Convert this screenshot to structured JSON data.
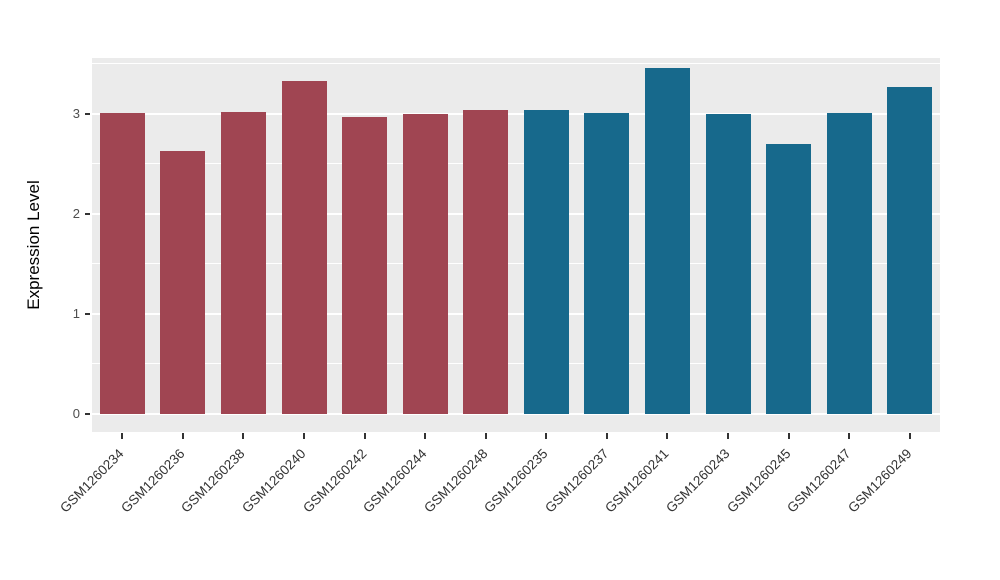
{
  "chart_data": {
    "type": "bar",
    "title": "",
    "xlabel": "",
    "ylabel": "Expression Level",
    "ylim": [
      0,
      3.57
    ],
    "yticks": [
      0,
      1,
      2,
      3
    ],
    "minor_gridlines": [
      0.5,
      1.5,
      2.5,
      3.5
    ],
    "categories": [
      "GSM1260234",
      "GSM1260236",
      "GSM1260238",
      "GSM1260240",
      "GSM1260242",
      "GSM1260244",
      "GSM1260248",
      "GSM1260235",
      "GSM1260237",
      "GSM1260241",
      "GSM1260243",
      "GSM1260245",
      "GSM1260247",
      "GSM1260249"
    ],
    "values": [
      3.01,
      2.63,
      3.02,
      3.33,
      2.97,
      3.0,
      3.04,
      3.04,
      3.01,
      3.46,
      3.0,
      2.7,
      3.01,
      3.27
    ],
    "groups": [
      "group1",
      "group1",
      "group1",
      "group1",
      "group1",
      "group1",
      "group1",
      "group2",
      "group2",
      "group2",
      "group2",
      "group2",
      "group2",
      "group2"
    ],
    "group_colors": {
      "group1": "#A04552",
      "group2": "#17698C"
    },
    "panel_background": "#EBEBEB",
    "gridline_color": "#FFFFFF",
    "grid": true,
    "legend": "none"
  }
}
